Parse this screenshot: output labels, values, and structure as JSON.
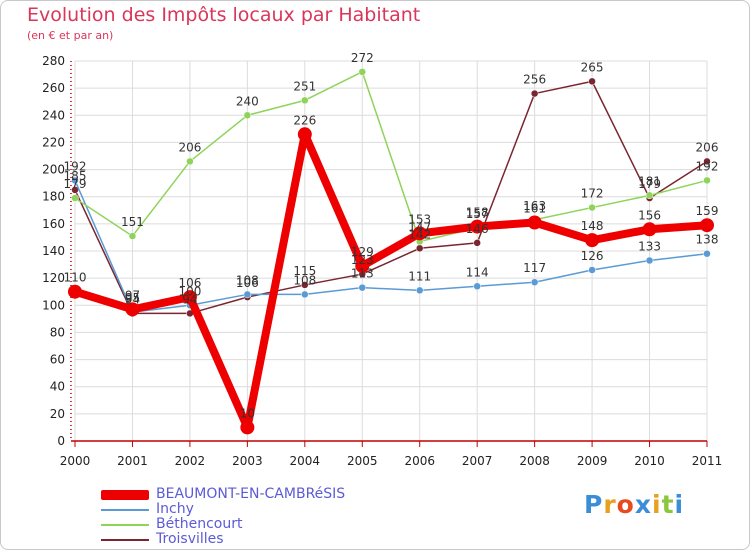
{
  "title": "Evolution des Impôts locaux par Habitant",
  "subtitle": "(en € et par an)",
  "logo": {
    "text": "Proxiti",
    "letters": [
      "P",
      "r",
      "o",
      "x",
      "i",
      "t",
      "i"
    ],
    "colors": [
      "#3b8ed6",
      "#e8a020",
      "#e84a20",
      "#3b8ed6",
      "#e8a020",
      "#8cc63f",
      "#3b8ed6"
    ]
  },
  "colors": {
    "title": "#d9365a",
    "axis": "#c00000",
    "grid": "#dcdcdc",
    "tick_text": "#222222",
    "legend_text": "#5b5bd6"
  },
  "chart_data": {
    "type": "line",
    "title": "Evolution des Impôts locaux par Habitant",
    "subtitle": "(en € et par an)",
    "xlabel": "",
    "ylabel": "",
    "ylim": [
      0,
      280
    ],
    "yticks": [
      0,
      20,
      40,
      60,
      80,
      100,
      120,
      140,
      160,
      180,
      200,
      220,
      240,
      260,
      280
    ],
    "x": [
      "2000",
      "2001",
      "2002",
      "2003",
      "2004",
      "2005",
      "2006",
      "2007",
      "2008",
      "2009",
      "2010",
      "2011"
    ],
    "legend_position": "bottom-left",
    "grid": true,
    "series": [
      {
        "name": "Troisvilles",
        "color": "#7a2530",
        "values": [
          185,
          94,
          94,
          106,
          115,
          123,
          142,
          146,
          256,
          265,
          179,
          206
        ],
        "labels": [
          "185",
          "94",
          "94",
          "106",
          "115",
          "123",
          "142",
          "146",
          "256",
          "265",
          "179",
          "206"
        ]
      },
      {
        "name": "Inchy",
        "color": "#5b9bd5",
        "values": [
          192,
          95,
          100,
          108,
          108,
          113,
          111,
          114,
          117,
          126,
          133,
          138
        ],
        "labels": [
          "192",
          "95",
          "100",
          "108",
          "108",
          "113",
          "111",
          "114",
          "117",
          "126",
          "133",
          "138"
        ]
      },
      {
        "name": "Béthencourt",
        "color": "#8ed45a",
        "values": [
          179,
          151,
          206,
          240,
          251,
          272,
          147,
          157,
          163,
          172,
          181,
          192
        ],
        "labels": [
          "179",
          "151",
          "206",
          "240",
          "251",
          "272",
          "147",
          "157",
          "163",
          "172",
          "181",
          "192"
        ]
      },
      {
        "name": "BEAUMONT-EN-CAMBRéSIS",
        "color": "#ee0000",
        "values": [
          110,
          97,
          106,
          10,
          226,
          129,
          153,
          158,
          161,
          148,
          156,
          159
        ],
        "labels": [
          "110",
          "97",
          "106",
          "10",
          "226",
          "129",
          "153",
          "158",
          "161",
          "148",
          "156",
          "159"
        ]
      }
    ],
    "legend_order": [
      "BEAUMONT-EN-CAMBRéSIS",
      "Inchy",
      "Béthencourt",
      "Troisvilles"
    ]
  }
}
